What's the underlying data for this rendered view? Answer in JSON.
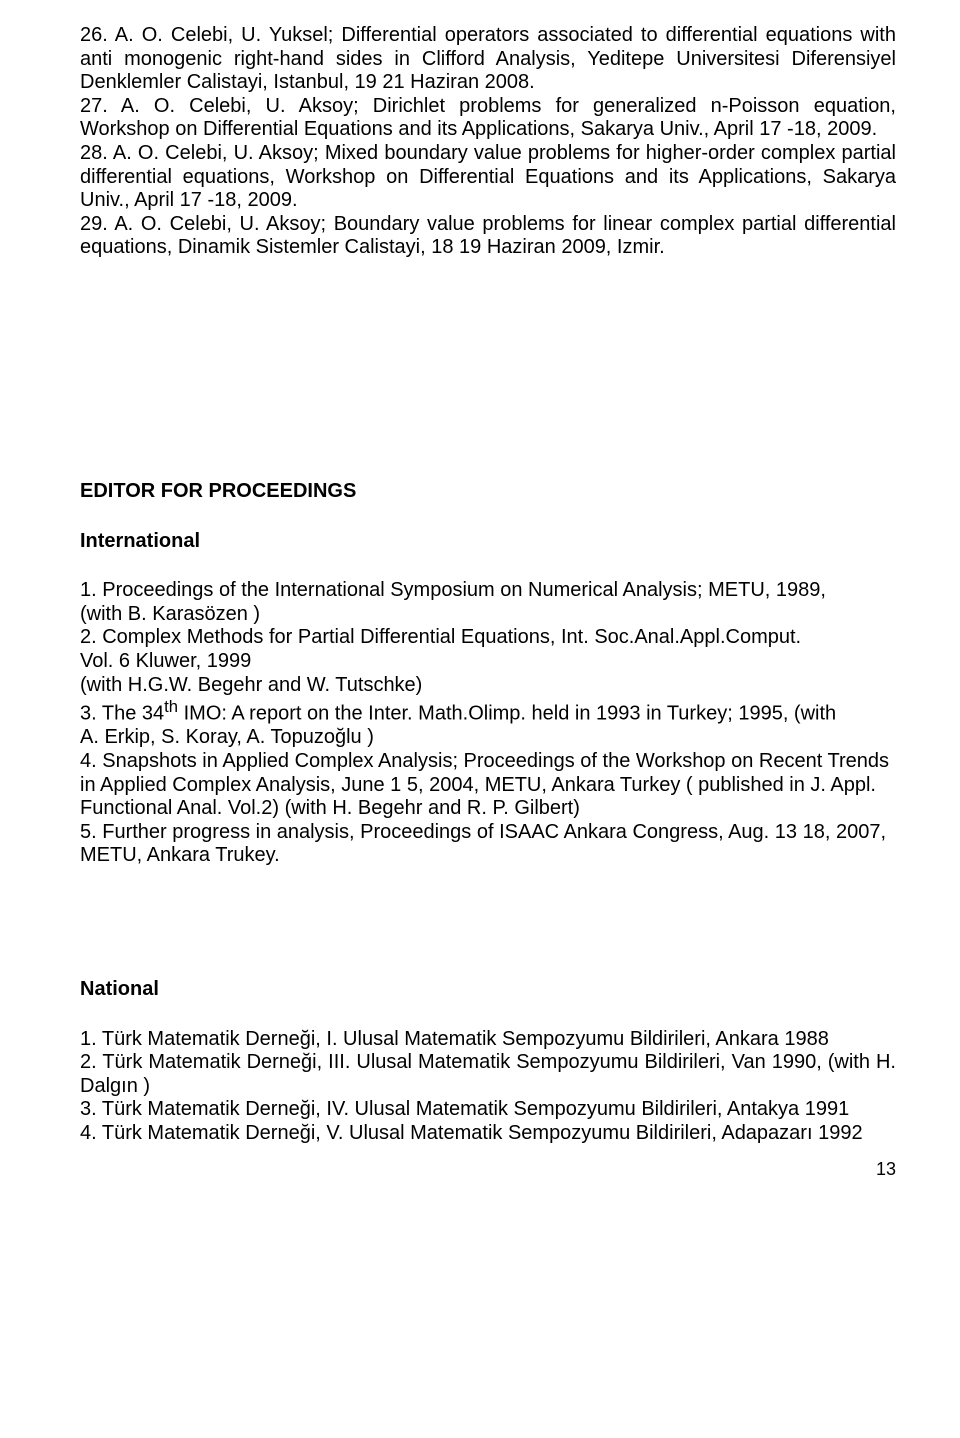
{
  "entries": {
    "e26": "26. A. O. Celebi, U. Yuksel; Differential operators associated to differential equations with anti monogenic right-hand sides in Clifford Analysis, Yeditepe Universitesi Diferensiyel Denklemler Calistayi, Istanbul, 19 21 Haziran 2008.",
    "e27": "27. A. O. Celebi, U. Aksoy; Dirichlet problems for generalized n-Poisson equation, Workshop on Differential Equations and its Applications, Sakarya Univ., April 17 -18, 2009.",
    "e28": "28. A. O. Celebi, U. Aksoy; Mixed boundary value problems for higher-order complex partial differential equations, Workshop on Differential Equations and its Applications, Sakarya Univ., April 17 -18, 2009.",
    "e29": "29. A. O. Celebi, U. Aksoy; Boundary value problems for linear complex partial differential equations, Dinamik Sistemler Calistayi, 18 19 Haziran 2009, Izmir."
  },
  "editor_heading": "EDITOR FOR PROCEEDINGS",
  "international_heading": "International",
  "international": {
    "i1a": "1. Proceedings of the International Symposium on Numerical Analysis; METU, 1989,",
    "i1b": "(with B. Karasözen )",
    "i2": "2. Complex  Methods for Partial Differential  Equations, Int. Soc.Anal.Appl.Comput.",
    "i2b": "Vol. 6  Kluwer, 1999",
    "i2c": "(with H.G.W. Begehr and W. Tutschke)",
    "i3a": "3. The 34",
    "i3sup": "th",
    "i3b": " IMO: A report on the Inter. Math.Olimp. held in 1993 in Turkey; 1995, (with",
    "i3c": "A. Erkip, S. Koray, A. Topuzoğlu )",
    "i4": "4. Snapshots in Applied Complex Analysis; Proceedings of the Workshop on Recent Trends in Applied Complex Analysis, June 1   5,  2004, METU, Ankara Turkey ( published in J. Appl. Functional Anal. Vol.2) (with H. Begehr and  R. P. Gilbert)",
    "i5": "5. Further progress in analysis, Proceedings of ISAAC Ankara Congress, Aug. 13   18, 2007, METU, Ankara Trukey."
  },
  "national_heading": "National",
  "national": {
    "n1": "1.   Türk Matematik Derneği,  I. Ulusal Matematik Sempozyumu Bildirileri, Ankara 1988",
    "n2": "2. Türk Matematik Derneği, III. Ulusal Matematik Sempozyumu Bildirileri, Van 1990, (with H. Dalgın )",
    "n3": "3. Türk Matematik Derneği, IV. Ulusal Matematik Sempozyumu Bildirileri, Antakya 1991",
    "n4": "4. Türk Matematik Derneği, V. Ulusal Matematik Sempozyumu Bildirileri, Adapazarı 1992"
  },
  "page_number": "13"
}
